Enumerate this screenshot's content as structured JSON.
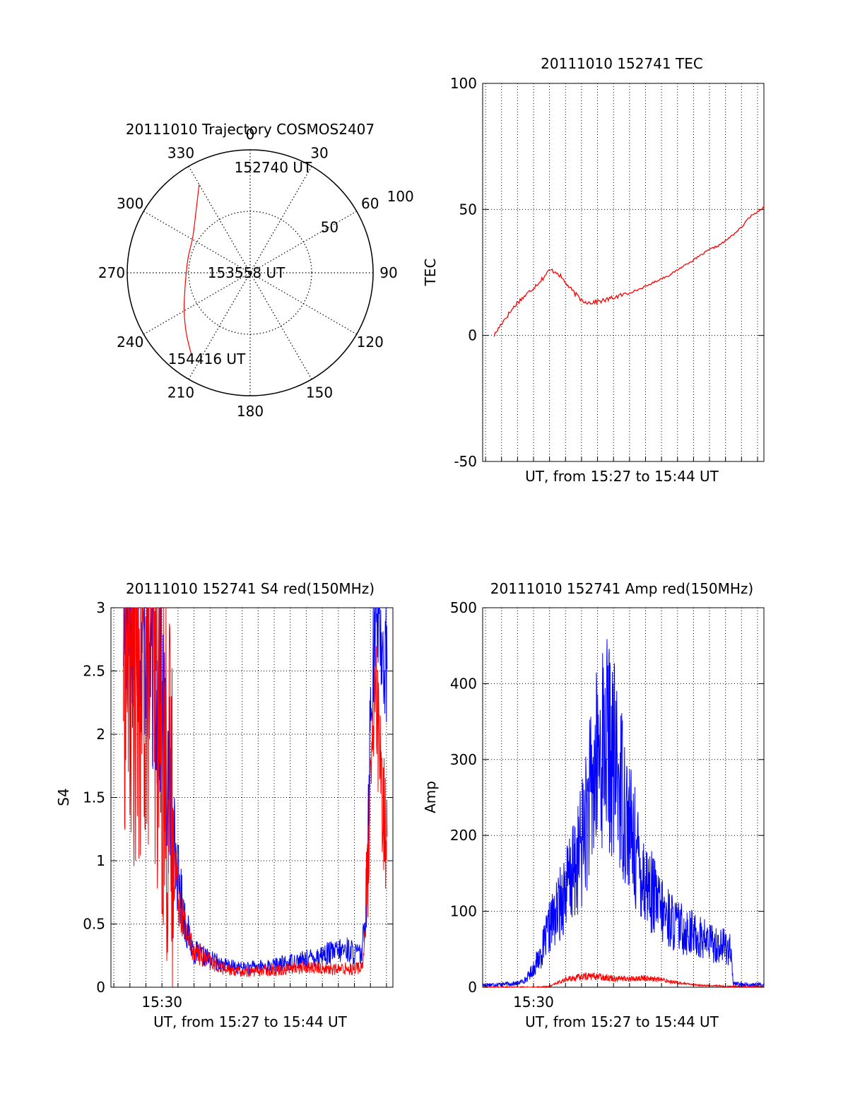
{
  "figure": {
    "background": "#ffffff",
    "axis_color": "#000000",
    "red": "#ff0000",
    "blue": "#0000ff"
  },
  "chart_data": [
    {
      "id": "trajectory",
      "type": "polar",
      "title": "20111010 Trajectory COSMOS2407",
      "azimuth_labels": [
        "0",
        "30",
        "60",
        "90",
        "120",
        "150",
        "180",
        "210",
        "240",
        "270",
        "300",
        "330"
      ],
      "radial_labels": [
        "50",
        "100"
      ],
      "rlim": [
        0,
        100
      ],
      "grid": true,
      "annotations": [
        {
          "text": "152740 UT",
          "az": 13,
          "r": 88
        },
        {
          "text": "153558 UT",
          "az": 270,
          "r": 2
        },
        {
          "text": "154416 UT",
          "az": 206,
          "r": 78
        }
      ],
      "track": {
        "color": "#ff0000",
        "points": [
          [
            330,
            83
          ],
          [
            318,
            66
          ],
          [
            302,
            55
          ],
          [
            285,
            52
          ],
          [
            270,
            52
          ],
          [
            255,
            55
          ],
          [
            240,
            62
          ],
          [
            226,
            72
          ],
          [
            214,
            84
          ]
        ]
      }
    },
    {
      "id": "tec",
      "type": "line",
      "title": "20111010 152741 TEC",
      "xlabel": "UT, from 15:27 to 15:44 UT",
      "ylabel": "TEC",
      "xlim": [
        15.447,
        15.74
      ],
      "ylim": [
        -50,
        100
      ],
      "yticks": [
        "-50",
        "0",
        "50",
        "100"
      ],
      "grid": true,
      "series": [
        {
          "color": "#ff0000",
          "x": [
            15.459,
            15.467,
            15.475,
            15.483,
            15.492,
            15.5,
            15.508,
            15.517,
            15.525,
            15.533,
            15.542,
            15.55,
            15.558,
            15.567,
            15.575,
            15.583,
            15.592,
            15.6,
            15.608,
            15.617,
            15.625,
            15.633,
            15.642,
            15.65,
            15.658,
            15.667,
            15.675,
            15.683,
            15.692,
            15.7,
            15.708,
            15.717,
            15.725,
            15.733,
            15.74
          ],
          "values": [
            0,
            5,
            9,
            13,
            16,
            19,
            22,
            26,
            25,
            21,
            17,
            14,
            13,
            13.5,
            14,
            15,
            16,
            17,
            18,
            19.5,
            21,
            22.5,
            24,
            26,
            28,
            30,
            32,
            34,
            35.5,
            37.5,
            40,
            43,
            47,
            49,
            51
          ]
        }
      ]
    },
    {
      "id": "s4",
      "type": "line",
      "title": "20111010 152741 S4 red(150MHz)",
      "xlabel": "UT, from 15:27 to 15:44 UT",
      "ylabel": "S4",
      "xlim": [
        15.447,
        15.74
      ],
      "ylim": [
        0,
        3
      ],
      "yticks": [
        "0",
        "0.5",
        "1",
        "1.5",
        "2",
        "2.5",
        "3"
      ],
      "xtick_label": "15:30",
      "xtick_at": 15.5,
      "grid": true,
      "series": [
        {
          "color": "#0000ff",
          "x": [
            15.46,
            15.475,
            15.49,
            15.5,
            15.508,
            15.517,
            15.525,
            15.533,
            15.55,
            15.567,
            15.583,
            15.6,
            15.617,
            15.633,
            15.65,
            15.667,
            15.683,
            15.692,
            15.7,
            15.708,
            15.712,
            15.717,
            15.722,
            15.728,
            15.734
          ],
          "values": [
            3,
            2.9,
            2.6,
            2.1,
            1.5,
            0.85,
            0.48,
            0.28,
            0.22,
            0.17,
            0.15,
            0.16,
            0.17,
            0.2,
            0.22,
            0.26,
            0.28,
            0.3,
            0.27,
            0.25,
            0.7,
            2.2,
            3,
            2.8,
            2.5
          ]
        },
        {
          "color": "#ff0000",
          "x": [
            15.46,
            15.475,
            15.49,
            15.5,
            15.508,
            15.517,
            15.525,
            15.533,
            15.55,
            15.567,
            15.583,
            15.6,
            15.617,
            15.633,
            15.65,
            15.667,
            15.683,
            15.692,
            15.7,
            15.708,
            15.712,
            15.717,
            15.722,
            15.728,
            15.734
          ],
          "values": [
            2.8,
            2.4,
            2.7,
            2.0,
            1.4,
            0.75,
            0.45,
            0.3,
            0.2,
            0.14,
            0.12,
            0.13,
            0.14,
            0.15,
            0.16,
            0.15,
            0.14,
            0.15,
            0.15,
            0.16,
            0.5,
            1.5,
            2.4,
            1.5,
            1.2
          ]
        }
      ]
    },
    {
      "id": "amp",
      "type": "line",
      "title": "20111010 152741 Amp red(150MHz)",
      "xlabel": "UT, from 15:27 to 15:44 UT",
      "ylabel": "Amp",
      "xlim": [
        15.447,
        15.74
      ],
      "ylim": [
        0,
        500
      ],
      "yticks": [
        "0",
        "100",
        "200",
        "300",
        "400",
        "500"
      ],
      "xtick_label": "15:30",
      "xtick_at": 15.5,
      "grid": true,
      "series": [
        {
          "color": "#0000ff",
          "x": [
            15.447,
            15.467,
            15.483,
            15.492,
            15.5,
            15.508,
            15.517,
            15.525,
            15.533,
            15.542,
            15.55,
            15.558,
            15.567,
            15.575,
            15.583,
            15.592,
            15.6,
            15.608,
            15.617,
            15.625,
            15.633,
            15.642,
            15.65,
            15.658,
            15.667,
            15.675,
            15.683,
            15.692,
            15.7,
            15.705,
            15.708,
            15.717,
            15.725,
            15.74
          ],
          "values": [
            3,
            4,
            5,
            10,
            25,
            45,
            80,
            100,
            130,
            150,
            190,
            240,
            300,
            330,
            300,
            260,
            210,
            170,
            140,
            120,
            100,
            90,
            80,
            75,
            70,
            65,
            60,
            55,
            55,
            50,
            5,
            4,
            3,
            3
          ]
        },
        {
          "color": "#ff0000",
          "x": [
            15.447,
            15.5,
            15.517,
            15.525,
            15.533,
            15.542,
            15.55,
            15.558,
            15.567,
            15.575,
            15.583,
            15.6,
            15.617,
            15.633,
            15.65,
            15.667,
            15.683,
            15.692,
            15.7,
            15.708,
            15.74
          ],
          "values": [
            0,
            0,
            1,
            6,
            10,
            12,
            14,
            15,
            14,
            13,
            12,
            11,
            12,
            10,
            6,
            3,
            2,
            2,
            1,
            1,
            1
          ]
        }
      ]
    }
  ]
}
